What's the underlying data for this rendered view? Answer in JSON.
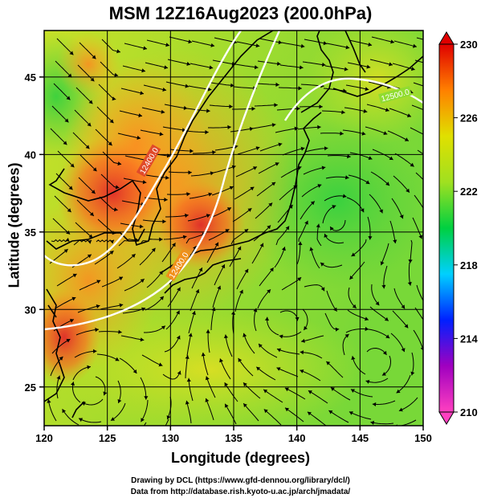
{
  "title": "MSM 12Z16Aug2023 (200.0hPa)",
  "axes": {
    "xlabel": "Longitude (degrees)",
    "ylabel": "Latitude  (degrees)",
    "x_ticks": [
      "120",
      "125",
      "130",
      "135",
      "140",
      "145",
      "150"
    ],
    "y_ticks": [
      "25",
      "30",
      "35",
      "40",
      "45"
    ],
    "xlim": [
      120,
      150
    ],
    "ylim": [
      22.5,
      48
    ]
  },
  "colorbar": {
    "ticks": [
      "230",
      "226",
      "222",
      "218",
      "214",
      "210"
    ],
    "range": [
      210,
      230
    ],
    "colors": [
      "#ff40c0",
      "#a000c0",
      "#0020ff",
      "#00d0ff",
      "#00d040",
      "#a0e020",
      "#e0e000",
      "#ff8000",
      "#e00000"
    ]
  },
  "contours": [
    {
      "label": "12400.0"
    },
    {
      "label": "12400.0"
    },
    {
      "label": "12500.0"
    }
  ],
  "credits": {
    "line1": "Drawing by DCL (https://www.gfd-dennou.org/library/dcl/)",
    "line2": "Data from http://database.rish.kyoto-u.ac.jp/arch/jmadata/"
  }
}
